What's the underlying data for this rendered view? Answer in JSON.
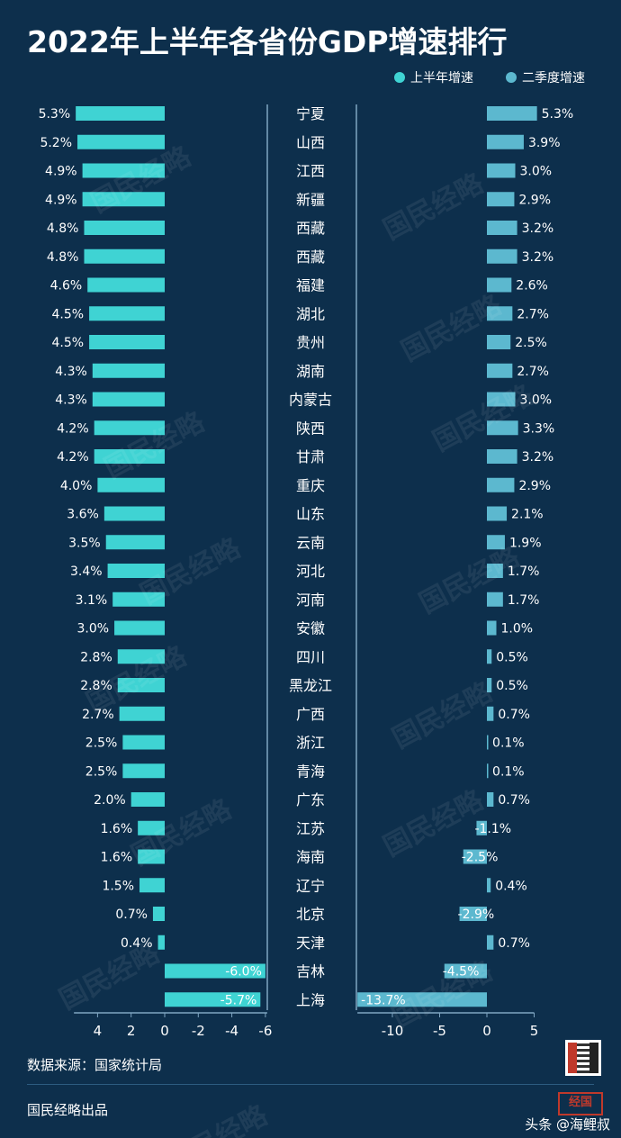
{
  "title": "2022年上半年各省份GDP增速排行",
  "legend": [
    {
      "label": "上半年增速",
      "color": "#3fd3d3"
    },
    {
      "label": "二季度增速",
      "color": "#5cb8cf"
    }
  ],
  "source": "数据来源：国家统计局",
  "brand": "国民经略出品",
  "credit": "头条 @海鲤叔",
  "logo_text": "经国",
  "watermark_text": "国民经略",
  "chart_data": [
    {
      "type": "bar",
      "orientation": "horizontal",
      "name": "上半年增速",
      "color": "#3fd3d3",
      "xlim": [
        -6,
        5.3
      ],
      "reversed_axis": true,
      "ticks": [
        4,
        2,
        0,
        -2,
        -4,
        -6
      ],
      "categories": [
        "宁夏",
        "山西",
        "江西",
        "新疆",
        "西藏",
        "西藏",
        "福建",
        "湖北",
        "贵州",
        "湖南",
        "内蒙古",
        "陕西",
        "甘肃",
        "重庆",
        "山东",
        "云南",
        "河北",
        "河南",
        "安徽",
        "四川",
        "黑龙江",
        "广西",
        "浙江",
        "青海",
        "广东",
        "江苏",
        "海南",
        "辽宁",
        "北京",
        "天津",
        "吉林",
        "上海"
      ],
      "values": [
        5.3,
        5.2,
        4.9,
        4.9,
        4.8,
        4.8,
        4.6,
        4.5,
        4.5,
        4.3,
        4.3,
        4.2,
        4.2,
        4.0,
        3.6,
        3.5,
        3.4,
        3.1,
        3.0,
        2.8,
        2.8,
        2.7,
        2.5,
        2.5,
        2.0,
        1.6,
        1.6,
        1.5,
        0.7,
        0.4,
        -6.0,
        -5.7
      ],
      "labels": [
        "5.3%",
        "5.2%",
        "4.9%",
        "4.9%",
        "4.8%",
        "4.8%",
        "4.6%",
        "4.5%",
        "4.5%",
        "4.3%",
        "4.3%",
        "4.2%",
        "4.2%",
        "4.0%",
        "3.6%",
        "3.5%",
        "3.4%",
        "3.1%",
        "3.0%",
        "2.8%",
        "2.8%",
        "2.7%",
        "2.5%",
        "2.5%",
        "2.0%",
        "1.6%",
        "1.6%",
        "1.5%",
        "0.7%",
        "0.4%",
        "-6.0%",
        "-5.7%"
      ]
    },
    {
      "type": "bar",
      "orientation": "horizontal",
      "name": "二季度增速",
      "color": "#5cb8cf",
      "xlim": [
        -13.7,
        5
      ],
      "ticks": [
        -10,
        -5,
        0,
        5
      ],
      "categories": [
        "宁夏",
        "山西",
        "江西",
        "新疆",
        "西藏",
        "西藏",
        "福建",
        "湖北",
        "贵州",
        "湖南",
        "内蒙古",
        "陕西",
        "甘肃",
        "重庆",
        "山东",
        "云南",
        "河北",
        "河南",
        "安徽",
        "四川",
        "黑龙江",
        "广西",
        "浙江",
        "青海",
        "广东",
        "江苏",
        "海南",
        "辽宁",
        "北京",
        "天津",
        "吉林",
        "上海"
      ],
      "values": [
        5.3,
        3.9,
        3.0,
        2.9,
        3.2,
        3.2,
        2.6,
        2.7,
        2.5,
        2.7,
        3.0,
        3.3,
        3.2,
        2.9,
        2.1,
        1.9,
        1.7,
        1.7,
        1.0,
        0.5,
        0.5,
        0.7,
        0.1,
        0.1,
        0.7,
        -1.1,
        -2.5,
        0.4,
        -2.9,
        0.7,
        -4.5,
        -13.7
      ],
      "labels": [
        "5.3%",
        "3.9%",
        "3.0%",
        "2.9%",
        "3.2%",
        "3.2%",
        "2.6%",
        "2.7%",
        "2.5%",
        "2.7%",
        "3.0%",
        "3.3%",
        "3.2%",
        "2.9%",
        "2.1%",
        "1.9%",
        "1.7%",
        "1.7%",
        "1.0%",
        "0.5%",
        "0.5%",
        "0.7%",
        "0.1%",
        "0.1%",
        "0.7%",
        "-1.1%",
        "-2.5%",
        "0.4%",
        "-2.9%",
        "0.7%",
        "-4.5%",
        "-13.7%"
      ]
    }
  ]
}
